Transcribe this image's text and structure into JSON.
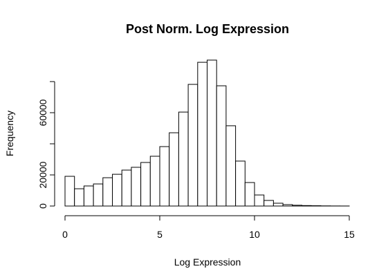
{
  "chart_data": {
    "type": "histogram",
    "title": "Post Norm. Log Expression",
    "x_label": "Log Expression",
    "y_label": "Frequency",
    "bins": [
      0,
      0.5,
      1,
      1.5,
      2,
      2.5,
      3,
      3.5,
      4,
      4.5,
      5,
      5.5,
      6,
      6.5,
      7,
      7.5,
      8,
      8.5,
      9,
      9.5,
      10,
      10.5,
      11,
      11.5,
      12,
      12.5,
      13,
      13.5,
      14,
      14.5,
      15
    ],
    "values": [
      19100,
      11100,
      12900,
      14200,
      18200,
      20400,
      23100,
      24900,
      28000,
      32000,
      38200,
      47100,
      60400,
      78200,
      92400,
      93800,
      77300,
      51600,
      28900,
      15100,
      7100,
      3600,
      1800,
      900,
      500,
      300,
      200,
      100,
      50,
      30
    ],
    "color": "#ffffff",
    "xlim": [
      0,
      15
    ],
    "xticks": [
      0,
      5,
      10,
      15
    ],
    "ylim": [
      0,
      100000
    ],
    "yticks": [
      0,
      20000,
      40000,
      60000,
      80000
    ],
    "grid": false
  }
}
